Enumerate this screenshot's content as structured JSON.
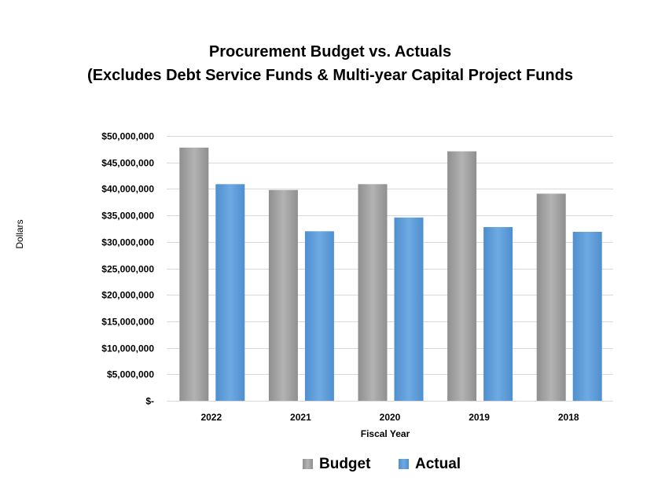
{
  "chart_data": {
    "type": "bar",
    "title": "Procurement Budget vs. Actuals",
    "subtitle": "(Excludes Debt Service Funds & Multi-year Capital Project Funds",
    "xlabel": "Fiscal Year",
    "ylabel": "Dollars",
    "categories": [
      "2022",
      "2021",
      "2020",
      "2019",
      "2018"
    ],
    "series": [
      {
        "name": "Budget",
        "values": [
          47800000,
          39800000,
          40900000,
          47100000,
          39100000
        ],
        "color": "#9a9a9a"
      },
      {
        "name": "Actual",
        "values": [
          40900000,
          32000000,
          34600000,
          32800000,
          31900000
        ],
        "color": "#5b9bd5"
      }
    ],
    "ylim": [
      0,
      50000000
    ],
    "yticks": [
      0,
      5000000,
      10000000,
      15000000,
      20000000,
      25000000,
      30000000,
      35000000,
      40000000,
      45000000,
      50000000
    ],
    "ytick_labels": [
      "$-",
      "$5,000,000",
      "$10,000,000",
      "$15,000,000",
      "$20,000,000",
      "$25,000,000",
      "$30,000,000",
      "$35,000,000",
      "$40,000,000",
      "$45,000,000",
      "$50,000,000"
    ],
    "grid": true,
    "legend_position": "bottom"
  }
}
